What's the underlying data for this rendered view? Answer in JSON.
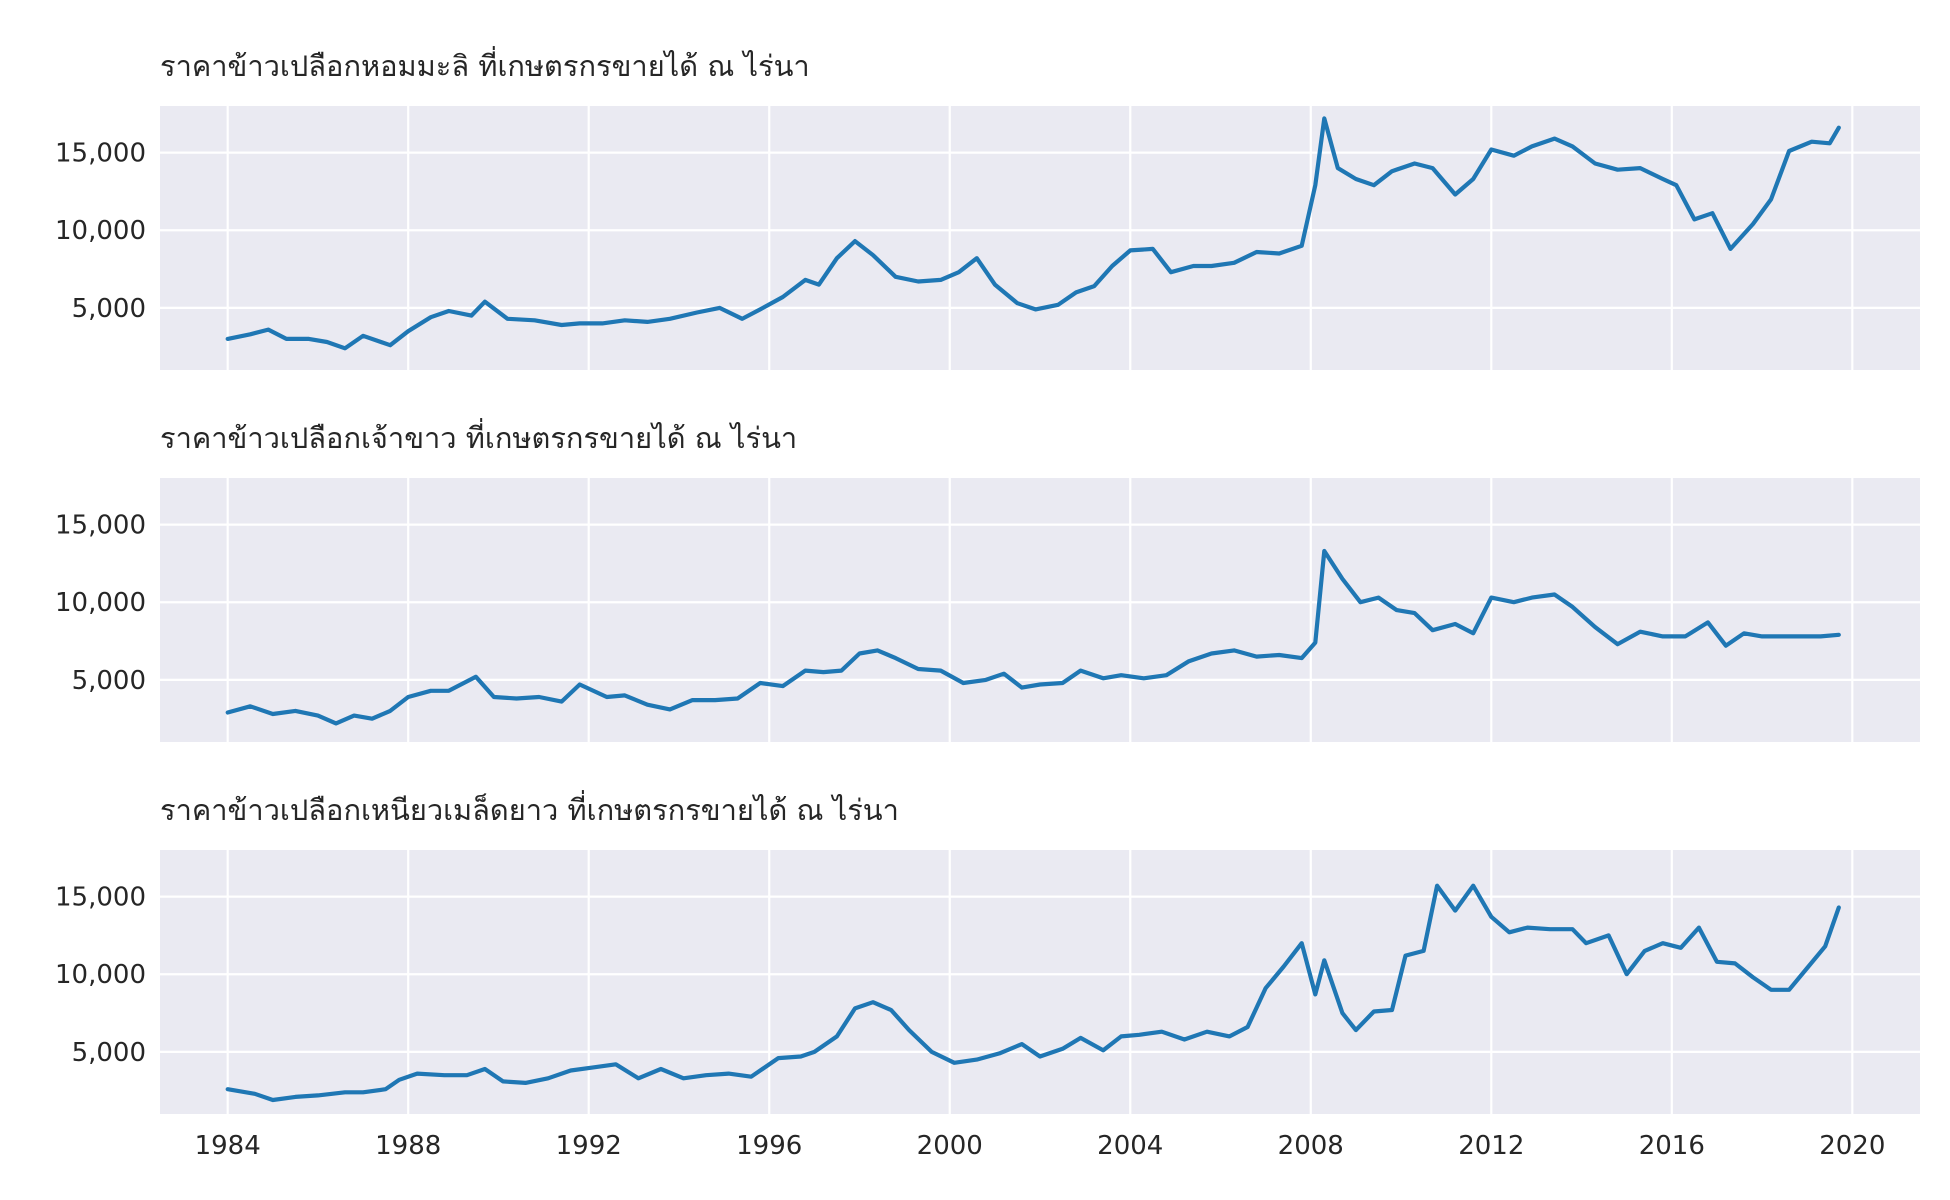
{
  "chart_data": [
    {
      "type": "line",
      "title": "ราคาข้าวเปลือกหอมมะลิ ที่เกษตรกรขายได้ ณ ไร่นา",
      "xlim": [
        1984,
        2020
      ],
      "ylim": [
        1000,
        18000
      ],
      "yticks": [
        5000,
        10000,
        15000
      ],
      "ytick_labels": [
        "5,000",
        "10,000",
        "15,000"
      ],
      "xticks": [
        1984,
        1988,
        1992,
        1996,
        2000,
        2004,
        2008,
        2012,
        2016,
        2020
      ],
      "xtick_labels": [],
      "grid": true,
      "series": [
        {
          "x": [
            1984.0,
            1984.5,
            1984.9,
            1985.3,
            1985.8,
            1986.2,
            1986.6,
            1987.0,
            1987.6,
            1988.0,
            1988.5,
            1988.9,
            1989.4,
            1989.7,
            1990.2,
            1990.8,
            1991.4,
            1991.8,
            1992.3,
            1992.8,
            1993.3,
            1993.8,
            1994.4,
            1994.9,
            1995.4,
            1995.8,
            1996.3,
            1996.8,
            1997.1,
            1997.5,
            1997.9,
            1998.3,
            1998.8,
            1999.3,
            1999.8,
            2000.2,
            2000.6,
            2001.0,
            2001.5,
            2001.9,
            2002.4,
            2002.8,
            2003.2,
            2003.6,
            2004.0,
            2004.5,
            2004.9,
            2005.4,
            2005.8,
            2006.3,
            2006.8,
            2007.3,
            2007.8,
            2008.1,
            2008.3,
            2008.6,
            2009.0,
            2009.4,
            2009.8,
            2010.3,
            2010.7,
            2011.2,
            2011.6,
            2012.0,
            2012.5,
            2012.9,
            2013.4,
            2013.8,
            2014.3,
            2014.8,
            2015.3,
            2015.8,
            2016.1,
            2016.5,
            2016.9,
            2017.3,
            2017.8,
            2018.2,
            2018.6,
            2019.1,
            2019.5,
            2019.7
          ],
          "values": [
            3000,
            3300,
            3600,
            3000,
            3000,
            2800,
            2400,
            3200,
            2600,
            3500,
            4400,
            4800,
            4500,
            5400,
            4300,
            4200,
            3900,
            4000,
            4000,
            4200,
            4100,
            4300,
            4700,
            5000,
            4300,
            4900,
            5700,
            6800,
            6500,
            8200,
            9300,
            8400,
            7000,
            6700,
            6800,
            7300,
            8200,
            6500,
            5300,
            4900,
            5200,
            6000,
            6400,
            7700,
            8700,
            8800,
            7300,
            7700,
            7700,
            7900,
            8600,
            8500,
            9000,
            12900,
            17200,
            14000,
            13300,
            12900,
            13800,
            14300,
            14000,
            12300,
            13300,
            15200,
            14800,
            15400,
            15900,
            15400,
            14300,
            13900,
            14000,
            13300,
            12900,
            10700,
            11100,
            8800,
            10400,
            12000,
            15100,
            15700,
            15600,
            16600
          ]
        }
      ]
    },
    {
      "type": "line",
      "title": "ราคาข้าวเปลือกเจ้าขาว ที่เกษตรกรขายได้ ณ ไร่นา",
      "xlim": [
        1984,
        2020
      ],
      "ylim": [
        1000,
        18000
      ],
      "yticks": [
        5000,
        10000,
        15000
      ],
      "ytick_labels": [
        "5,000",
        "10,000",
        "15,000"
      ],
      "xticks": [
        1984,
        1988,
        1992,
        1996,
        2000,
        2004,
        2008,
        2012,
        2016,
        2020
      ],
      "xtick_labels": [],
      "grid": true,
      "series": [
        {
          "x": [
            1984.0,
            1984.5,
            1985.0,
            1985.5,
            1986.0,
            1986.4,
            1986.8,
            1987.2,
            1987.6,
            1988.0,
            1988.5,
            1988.9,
            1989.5,
            1989.9,
            1990.4,
            1990.9,
            1991.4,
            1991.8,
            1992.4,
            1992.8,
            1993.3,
            1993.8,
            1994.3,
            1994.8,
            1995.3,
            1995.8,
            1996.3,
            1996.8,
            1997.2,
            1997.6,
            1998.0,
            1998.4,
            1998.8,
            1999.3,
            1999.8,
            2000.3,
            2000.8,
            2001.2,
            2001.6,
            2002.0,
            2002.5,
            2002.9,
            2003.4,
            2003.8,
            2004.3,
            2004.8,
            2005.3,
            2005.8,
            2006.3,
            2006.8,
            2007.3,
            2007.8,
            2008.1,
            2008.3,
            2008.7,
            2009.1,
            2009.5,
            2009.9,
            2010.3,
            2010.7,
            2011.2,
            2011.6,
            2012.0,
            2012.5,
            2012.9,
            2013.4,
            2013.8,
            2014.3,
            2014.8,
            2015.3,
            2015.8,
            2016.3,
            2016.8,
            2017.2,
            2017.6,
            2018.0,
            2018.5,
            2018.9,
            2019.3,
            2019.7
          ],
          "values": [
            2900,
            3300,
            2800,
            3000,
            2700,
            2200,
            2700,
            2500,
            3000,
            3900,
            4300,
            4300,
            5200,
            3900,
            3800,
            3900,
            3600,
            4700,
            3900,
            4000,
            3400,
            3100,
            3700,
            3700,
            3800,
            4800,
            4600,
            5600,
            5500,
            5600,
            6700,
            6900,
            6400,
            5700,
            5600,
            4800,
            5000,
            5400,
            4500,
            4700,
            4800,
            5600,
            5100,
            5300,
            5100,
            5300,
            6200,
            6700,
            6900,
            6500,
            6600,
            6400,
            7400,
            13300,
            11500,
            10000,
            10300,
            9500,
            9300,
            8200,
            8600,
            8000,
            10300,
            10000,
            10300,
            10500,
            9700,
            8400,
            7300,
            8100,
            7800,
            7800,
            8700,
            7200,
            8000,
            7800,
            7800,
            7800,
            7800,
            7900
          ]
        }
      ]
    },
    {
      "type": "line",
      "title": "ราคาข้าวเปลือกเหนียวเมล็ดยาว ที่เกษตรกรขายได้ ณ ไร่นา",
      "xlim": [
        1984,
        2020
      ],
      "ylim": [
        1000,
        18000
      ],
      "yticks": [
        5000,
        10000,
        15000
      ],
      "ytick_labels": [
        "5,000",
        "10,000",
        "15,000"
      ],
      "xticks": [
        1984,
        1988,
        1992,
        1996,
        2000,
        2004,
        2008,
        2012,
        2016,
        2020
      ],
      "xtick_labels": [
        "1984",
        "1988",
        "1992",
        "1996",
        "2000",
        "2004",
        "2008",
        "2012",
        "2016",
        "2020"
      ],
      "grid": true,
      "series": [
        {
          "x": [
            1984.0,
            1984.6,
            1985.0,
            1985.5,
            1986.0,
            1986.6,
            1987.0,
            1987.5,
            1987.8,
            1988.2,
            1988.8,
            1989.3,
            1989.7,
            1990.1,
            1990.6,
            1991.1,
            1991.6,
            1992.1,
            1992.6,
            1993.1,
            1993.6,
            1994.1,
            1994.6,
            1995.1,
            1995.6,
            1996.2,
            1996.7,
            1997.0,
            1997.5,
            1997.9,
            1998.3,
            1998.7,
            1999.1,
            1999.6,
            2000.1,
            2000.6,
            2001.1,
            2001.6,
            2002.0,
            2002.5,
            2002.9,
            2003.4,
            2003.8,
            2004.2,
            2004.7,
            2005.2,
            2005.7,
            2006.2,
            2006.6,
            2007.0,
            2007.4,
            2007.8,
            2008.1,
            2008.3,
            2008.7,
            2009.0,
            2009.4,
            2009.8,
            2010.1,
            2010.5,
            2010.8,
            2011.2,
            2011.6,
            2012.0,
            2012.4,
            2012.8,
            2013.3,
            2013.8,
            2014.1,
            2014.6,
            2015.0,
            2015.4,
            2015.8,
            2016.2,
            2016.6,
            2017.0,
            2017.4,
            2017.8,
            2018.2,
            2018.6,
            2019.0,
            2019.4,
            2019.7
          ],
          "values": [
            2600,
            2300,
            1900,
            2100,
            2200,
            2400,
            2400,
            2600,
            3200,
            3600,
            3500,
            3500,
            3900,
            3100,
            3000,
            3300,
            3800,
            4000,
            4200,
            3300,
            3900,
            3300,
            3500,
            3600,
            3400,
            4600,
            4700,
            5000,
            6000,
            7800,
            8200,
            7700,
            6400,
            5000,
            4300,
            4500,
            4900,
            5500,
            4700,
            5200,
            5900,
            5100,
            6000,
            6100,
            6300,
            5800,
            6300,
            6000,
            6600,
            9100,
            10500,
            12000,
            8700,
            10900,
            7500,
            6400,
            7600,
            7700,
            11200,
            11500,
            15700,
            14100,
            15700,
            13700,
            12700,
            13000,
            12900,
            12900,
            12000,
            12500,
            10000,
            11500,
            12000,
            11700,
            13000,
            10800,
            10700,
            9800,
            9000,
            9000,
            10400,
            11800,
            14300
          ]
        }
      ]
    }
  ]
}
